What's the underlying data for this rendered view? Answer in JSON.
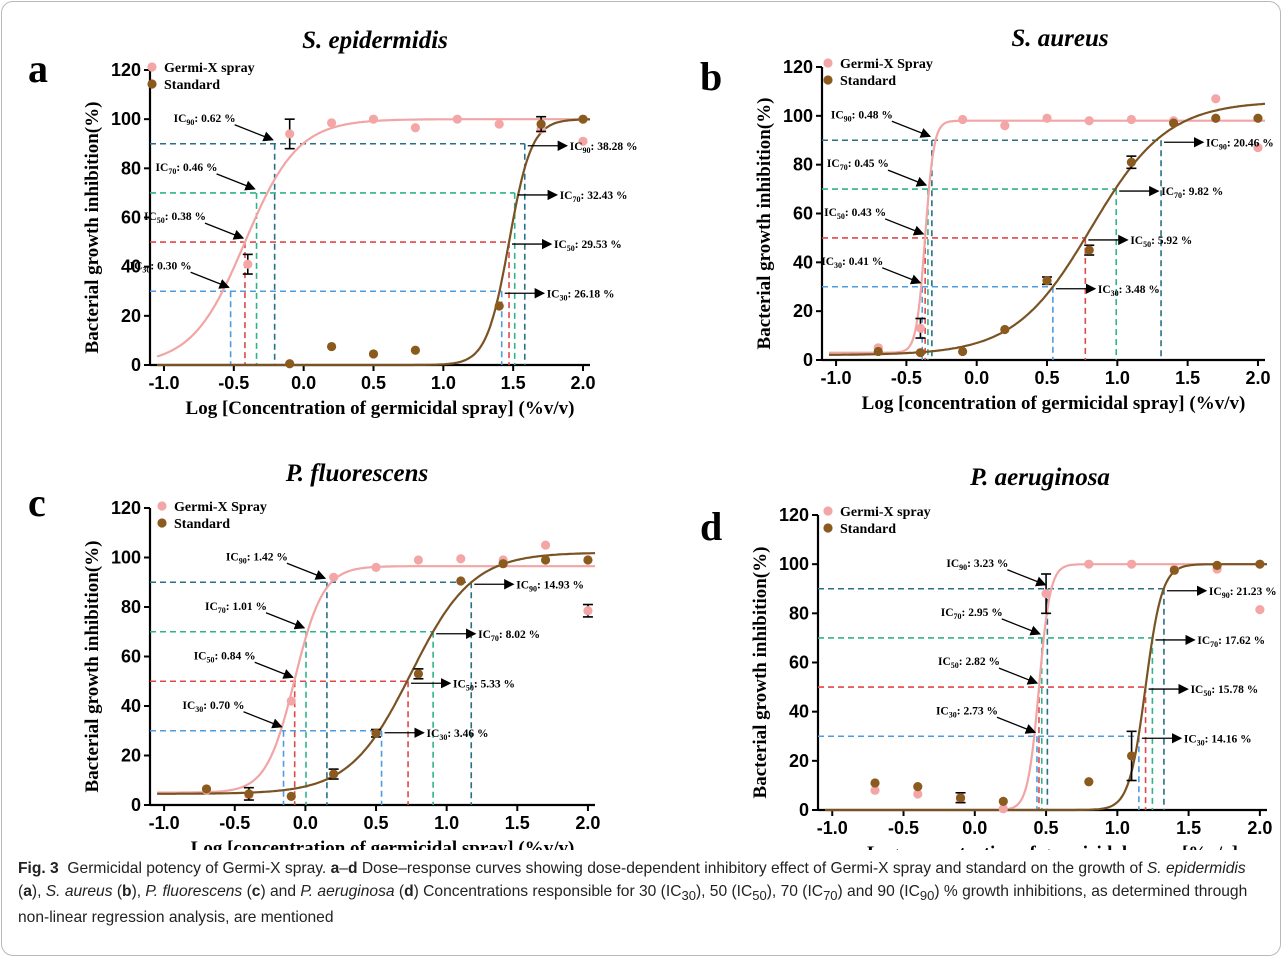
{
  "chart_data": [
    {
      "type": "scatter",
      "panel_letter": "a",
      "title": "S. epidermidis",
      "xlabel": "Log [Concentration of germicidal spray] (%v/v)",
      "ylabel": "Bacterial growth  inhibition(%)",
      "xlim": [
        -1.1,
        2.05
      ],
      "ylim": [
        0,
        120
      ],
      "xticks": [
        -1.0,
        -0.5,
        0.0,
        0.5,
        1.0,
        1.5,
        2.0
      ],
      "xtick_labels": [
        "-1.0",
        "-0.5",
        "0.0",
        "0.5",
        "1.0",
        "1.5",
        "2.0"
      ],
      "yticks": [
        0,
        20,
        40,
        60,
        80,
        100,
        120
      ],
      "ytick_labels": [
        "0",
        "20",
        "40",
        "60",
        "80",
        "100",
        "120"
      ],
      "legend_position": "top-left",
      "series": [
        {
          "name": "Germi-X spray",
          "color": "#f4a6a6",
          "x": [
            -0.4,
            -0.1,
            0.2,
            0.5,
            0.8,
            1.1,
            1.4,
            1.7,
            2.0
          ],
          "y": [
            41,
            94,
            98.5,
            100,
            96.5,
            100,
            98,
            96,
            91
          ],
          "errors": [
            4,
            6,
            0,
            0,
            0,
            0,
            0,
            0,
            0
          ],
          "fit": {
            "bottom": 0,
            "top": 100,
            "ic50": 0.38,
            "hill": 2.3
          }
        },
        {
          "name": "Standard",
          "color": "#8b5a1e",
          "x": [
            -0.1,
            0.2,
            0.5,
            0.8,
            1.4,
            1.7,
            2.0
          ],
          "y": [
            0.5,
            7.5,
            4.5,
            6,
            24,
            98,
            100
          ],
          "errors": [
            0,
            0,
            0,
            0,
            0,
            3,
            0
          ],
          "fit": {
            "bottom": 0,
            "top": 100,
            "ic50": 29.53,
            "hill": 5.4
          }
        }
      ],
      "annotations": [
        {
          "level": 90,
          "sub": "90",
          "left": "0.62 %",
          "right": "38.28 %"
        },
        {
          "level": 70,
          "sub": "70",
          "left": "0.46 %",
          "right": "32.43 %"
        },
        {
          "level": 50,
          "sub": "50",
          "left": "0.38 %",
          "right": "29.53 %"
        },
        {
          "level": 30,
          "sub": "30",
          "left": "0.30 %",
          "right": "26.18 %"
        }
      ]
    },
    {
      "type": "scatter",
      "panel_letter": "b",
      "title": "S. aureus",
      "xlabel": "Log [concentration of germicidal spray] (%v/v)",
      "ylabel": "Bacterial growth  inhibition(%)",
      "xlim": [
        -1.1,
        2.05
      ],
      "ylim": [
        0,
        120
      ],
      "xticks": [
        -1.0,
        -0.5,
        0.0,
        0.5,
        1.0,
        1.5,
        2.0
      ],
      "xtick_labels": [
        "-1.0",
        "-0.5",
        "0.0",
        "0.5",
        "1.0",
        "1.5",
        "2.0"
      ],
      "yticks": [
        0,
        20,
        40,
        60,
        80,
        100,
        120
      ],
      "ytick_labels": [
        "0",
        "20",
        "40",
        "60",
        "80",
        "100",
        "120"
      ],
      "legend_position": "top-left",
      "series": [
        {
          "name": "Germi-X Spray",
          "color": "#f4a6a6",
          "x": [
            -0.7,
            -0.4,
            -0.1,
            0.2,
            0.5,
            0.8,
            1.1,
            1.4,
            1.7,
            2.0
          ],
          "y": [
            5,
            13,
            98.5,
            96,
            99,
            98,
            98.5,
            98,
            107,
            87
          ],
          "errors": [
            0,
            4,
            0,
            0,
            0,
            0,
            0,
            0,
            0,
            0
          ],
          "fit": {
            "bottom": 3,
            "top": 98,
            "ic50": 0.43,
            "hill": 14
          }
        },
        {
          "name": "Standard",
          "color": "#8b5a1e",
          "x": [
            -0.7,
            -0.4,
            -0.1,
            0.2,
            0.5,
            0.8,
            1.1,
            1.4,
            1.7,
            2.0
          ],
          "y": [
            3.5,
            3,
            3.5,
            12.5,
            32.5,
            45,
            81,
            97,
            99,
            99
          ],
          "errors": [
            0,
            0,
            0,
            0,
            1.5,
            2,
            2.5,
            0,
            0,
            0
          ],
          "fit": {
            "bottom": 2,
            "top": 106,
            "ic50": 6.5,
            "hill": 1.6
          }
        }
      ],
      "annotations": [
        {
          "level": 90,
          "sub": "90",
          "left": "0.48 %",
          "right": "20.46 %"
        },
        {
          "level": 70,
          "sub": "70",
          "left": "0.45 %",
          "right": "9.82 %"
        },
        {
          "level": 50,
          "sub": "50",
          "left": "0.43 %",
          "right": "5.92 %"
        },
        {
          "level": 30,
          "sub": "30",
          "left": "0.41 %",
          "right": "3.48 %"
        }
      ]
    },
    {
      "type": "scatter",
      "panel_letter": "c",
      "title": "P. fluorescens",
      "xlabel": "Log [concentration of germicidal spray] (%v/v)",
      "ylabel": "Bacterial growth  inhibition(%)",
      "xlim": [
        -1.1,
        2.05
      ],
      "ylim": [
        0,
        120
      ],
      "xticks": [
        -1.0,
        -0.5,
        0.0,
        0.5,
        1.0,
        1.5,
        2.0
      ],
      "xtick_labels": [
        "-1.0",
        "-0.5",
        "0.0",
        "0.5",
        "1.0",
        "1.5",
        "2.0"
      ],
      "yticks": [
        0,
        20,
        40,
        60,
        80,
        100,
        120
      ],
      "ytick_labels": [
        "0",
        "20",
        "40",
        "60",
        "80",
        "100",
        "120"
      ],
      "legend_position": "top-left",
      "series": [
        {
          "name": "Germi-X Spray",
          "color": "#f4a6a6",
          "x": [
            -0.7,
            -0.4,
            -0.1,
            0.2,
            0.5,
            0.8,
            1.1,
            1.4,
            1.7,
            2.0
          ],
          "y": [
            6,
            4,
            42,
            92,
            96,
            99,
            99.5,
            99,
            105,
            78.5
          ],
          "errors": [
            0,
            0,
            0,
            0,
            0,
            0,
            0,
            0,
            0,
            2.5
          ],
          "fit": {
            "bottom": 5,
            "top": 96.5,
            "ic50": 0.84,
            "hill": 4.3
          }
        },
        {
          "name": "Standard",
          "color": "#8b5a1e",
          "x": [
            -0.7,
            -0.4,
            -0.1,
            0.2,
            0.5,
            0.8,
            1.1,
            1.4,
            1.7,
            2.0
          ],
          "y": [
            6.5,
            4.5,
            3.5,
            12.5,
            29,
            53,
            90.5,
            97.5,
            99,
            99
          ],
          "errors": [
            0,
            2.5,
            0,
            2,
            1.5,
            2,
            0,
            0,
            0,
            0
          ],
          "fit": {
            "bottom": 4.5,
            "top": 102,
            "ic50": 5.6,
            "hill": 2.0
          }
        }
      ],
      "annotations": [
        {
          "level": 90,
          "sub": "90",
          "left": "1.42 %",
          "right": "14.93 %"
        },
        {
          "level": 70,
          "sub": "70",
          "left": "1.01 %",
          "right": "8.02 %"
        },
        {
          "level": 50,
          "sub": "50",
          "left": "0.84 %",
          "right": "5.33 %"
        },
        {
          "level": 30,
          "sub": "30",
          "left": "0.70 %",
          "right": "3.46 %"
        }
      ]
    },
    {
      "type": "scatter",
      "panel_letter": "d",
      "title": "P. aeruginosa",
      "xlabel": "Log concentration of germicidal spray [%v/v]",
      "ylabel": "Bacterial growth  inhibition(%)",
      "xlim": [
        -1.1,
        2.05
      ],
      "ylim": [
        0,
        120
      ],
      "xticks": [
        -1.0,
        -0.5,
        0.0,
        0.5,
        1.0,
        1.5,
        2.0
      ],
      "xtick_labels": [
        "-1.0",
        "-0.5",
        "0.0",
        "0.5",
        "1.0",
        "1.5",
        "2.0"
      ],
      "yticks": [
        0,
        20,
        40,
        60,
        80,
        100,
        120
      ],
      "ytick_labels": [
        "0",
        "20",
        "40",
        "60",
        "80",
        "100",
        "120"
      ],
      "legend_position": "top-left",
      "series": [
        {
          "name": "Germi-X spray",
          "color": "#f4a6a6",
          "x": [
            -0.7,
            -0.4,
            -0.1,
            0.2,
            0.5,
            0.8,
            1.1,
            1.4,
            1.7,
            2.0
          ],
          "y": [
            8,
            6.5,
            4.5,
            0.5,
            88,
            100,
            100,
            98,
            98,
            81.5
          ],
          "errors": [
            0,
            0,
            0,
            0,
            8,
            0,
            0,
            0,
            0,
            0
          ],
          "fit": {
            "bottom": 0,
            "top": 100,
            "ic50": 2.82,
            "hill": 11
          }
        },
        {
          "name": "Standard",
          "color": "#8b5a1e",
          "x": [
            -0.7,
            -0.4,
            -0.1,
            0.2,
            0.8,
            1.1,
            1.4,
            1.7,
            2.0
          ],
          "y": [
            11,
            9.5,
            5,
            3.5,
            11.5,
            22,
            97.5,
            99.5,
            100
          ],
          "errors": [
            0,
            0,
            2,
            0,
            0,
            10,
            0,
            0,
            0
          ],
          "fit": {
            "bottom": 0,
            "top": 100,
            "ic50": 15.78,
            "hill": 7.5
          }
        }
      ],
      "annotations": [
        {
          "level": 90,
          "sub": "90",
          "left": "3.23 %",
          "right": "21.23 %"
        },
        {
          "level": 70,
          "sub": "70",
          "left": "2.95 %",
          "right": "17.62 %"
        },
        {
          "level": 50,
          "sub": "50",
          "left": "2.82 %",
          "right": "15.78 %"
        },
        {
          "level": 30,
          "sub": "30",
          "left": "2.73 %",
          "right": "14.16 %"
        }
      ]
    }
  ],
  "guide_colors": {
    "90": "#2a6f86",
    "70": "#2fb38a",
    "50": "#e04848",
    "30": "#4f9be0"
  },
  "caption": {
    "fig_label": "Fig. 3",
    "title": "Germicidal potency of Germi-X spray.",
    "panels_ref": "a",
    "dash": "–",
    "panels_ref2": "d",
    "text1": "Dose–response curves showing dose-dependent inhibitory effect of Germi-X spray and standard on the growth of",
    "org_a": "S. epidermidis",
    "let_a": "a",
    "org_b": "S. aureus",
    "let_b": "b",
    "org_c": "P. fluorescens",
    "let_c": "c",
    "and_word": "and",
    "org_d": "P. aeruginosa",
    "let_d": "d",
    "text2": "Concentrations responsible for 30 (IC",
    "s30": "30",
    "text3": "), 50 (IC",
    "s50": "50",
    "text4": "), 70 (IC",
    "s70": "70",
    "text5": ") and 90 (IC",
    "s90": "90",
    "text6": ") % growth inhibitions, as determined through non-linear regression analysis, are mentioned"
  }
}
